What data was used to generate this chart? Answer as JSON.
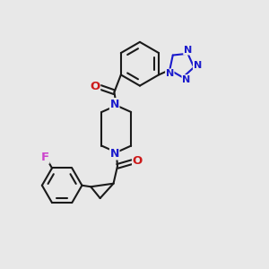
{
  "bg_color": "#e8e8e8",
  "bond_color": "#1a1a1a",
  "nitrogen_color": "#1a1acc",
  "oxygen_color": "#cc1a1a",
  "fluorine_color": "#cc44cc",
  "lw": 1.5,
  "dbg": 0.006,
  "xlim": [
    0.0,
    1.0
  ],
  "ylim": [
    0.0,
    1.0
  ]
}
